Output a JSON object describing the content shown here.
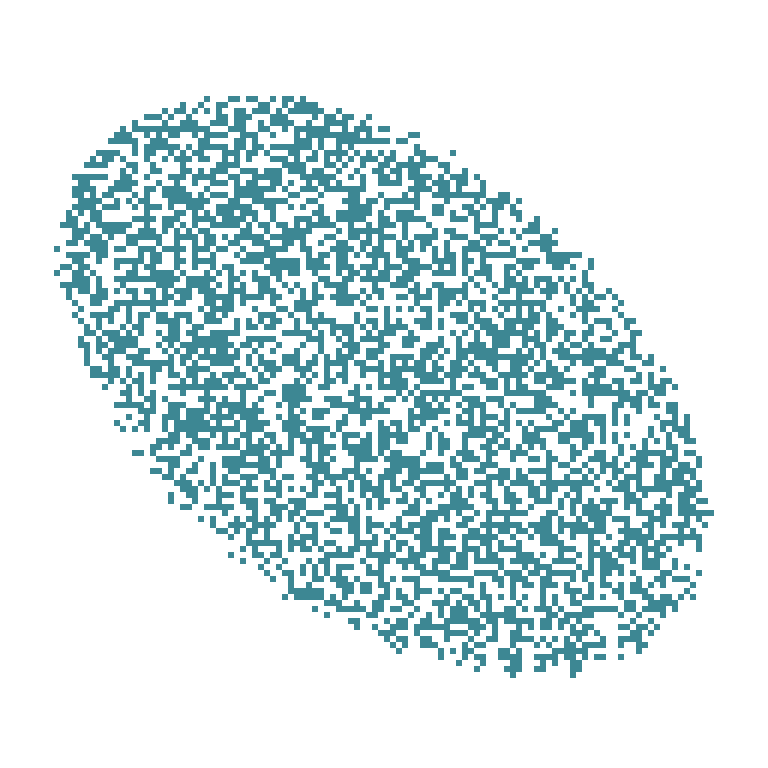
{
  "image": {
    "description_tag": "pixel-noise-blob",
    "background_color": "#ffffff",
    "cell_color": "#3d8793",
    "fill_fraction": 0.52,
    "seed": 20240611
  }
}
